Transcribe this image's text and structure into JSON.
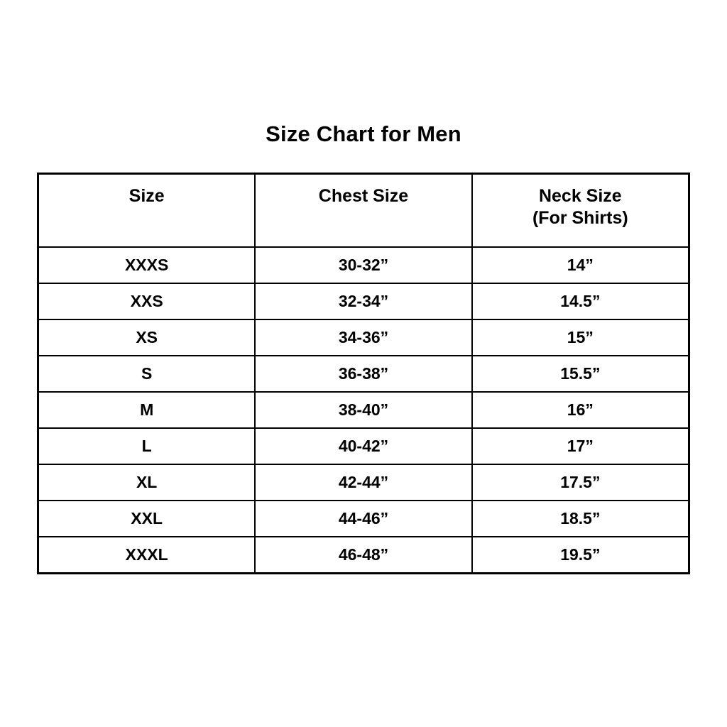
{
  "page": {
    "title": "Size Chart for Men"
  },
  "colors": {
    "background": "#ffffff",
    "text": "#000000",
    "border": "#000000"
  },
  "table": {
    "headers": [
      {
        "label": "Size"
      },
      {
        "label": "Chest Size"
      },
      {
        "label": "Neck Size",
        "sub": "(For Shirts)"
      }
    ],
    "rows": [
      {
        "size": "XXXS",
        "chest": "30-32”",
        "neck": "14”"
      },
      {
        "size": "XXS",
        "chest": "32-34”",
        "neck": "14.5”"
      },
      {
        "size": "XS",
        "chest": "34-36”",
        "neck": "15”"
      },
      {
        "size": "S",
        "chest": "36-38”",
        "neck": "15.5”"
      },
      {
        "size": "M",
        "chest": "38-40”",
        "neck": "16”"
      },
      {
        "size": "L",
        "chest": "40-42”",
        "neck": "17”"
      },
      {
        "size": "XL",
        "chest": "42-44”",
        "neck": "17.5”"
      },
      {
        "size": "XXL",
        "chest": "44-46”",
        "neck": "18.5”"
      },
      {
        "size": "XXXL",
        "chest": "46-48”",
        "neck": "19.5”"
      }
    ]
  }
}
